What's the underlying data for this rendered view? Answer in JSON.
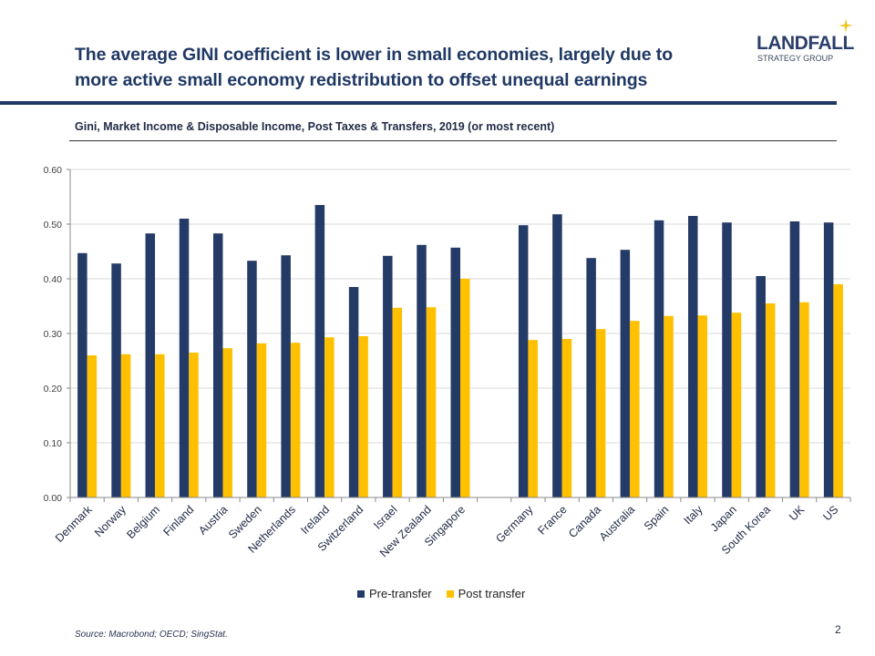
{
  "header": {
    "title_line1": "The average GINI coefficient is lower in small economies, largely due to",
    "title_line2": "more active small economy redistribution to offset unequal earnings",
    "logo_main": "LANDFALL",
    "logo_sub": "STRATEGY GROUP",
    "logo_icon": "four-point-star-icon"
  },
  "colors": {
    "navy": "#1f3864",
    "pre_transfer": "#243b67",
    "post_transfer": "#ffc000",
    "star": "#f0c419"
  },
  "chart_data": {
    "type": "bar",
    "title": "Gini, Market Income & Disposable Income, Post Taxes & Transfers, 2019 (or most recent)",
    "xlabel": "",
    "ylabel": "",
    "ylim": [
      0,
      0.6
    ],
    "yticks": [
      "0.00",
      "0.10",
      "0.20",
      "0.30",
      "0.40",
      "0.50",
      "0.60"
    ],
    "ytick_values": [
      0,
      0.1,
      0.2,
      0.3,
      0.4,
      0.5,
      0.6
    ],
    "grid": true,
    "legend_position": "bottom",
    "categories": [
      "Denmark",
      "Norway",
      "Belgium",
      "Finland",
      "Austria",
      "Sweden",
      "Netherlands",
      "Ireland",
      "Switzerland",
      "Israel",
      "New Zealand",
      "Singapore",
      "",
      "Germany",
      "France",
      "Canada",
      "Australia",
      "Spain",
      "Italy",
      "Japan",
      "South Korea",
      "UK",
      "US"
    ],
    "series": [
      {
        "name": "Pre-transfer",
        "color": "#243b67",
        "values": [
          0.447,
          0.428,
          0.483,
          0.51,
          0.483,
          0.433,
          0.443,
          0.535,
          0.385,
          0.442,
          0.462,
          0.457,
          null,
          0.498,
          0.518,
          0.438,
          0.453,
          0.507,
          0.515,
          0.503,
          0.405,
          0.505,
          0.503
        ]
      },
      {
        "name": "Post transfer",
        "color": "#ffc000",
        "values": [
          0.26,
          0.262,
          0.262,
          0.265,
          0.273,
          0.282,
          0.283,
          0.293,
          0.295,
          0.347,
          0.348,
          0.4,
          null,
          0.288,
          0.29,
          0.308,
          0.323,
          0.332,
          0.333,
          0.338,
          0.355,
          0.357,
          0.39
        ]
      }
    ]
  },
  "legend": {
    "items": [
      {
        "label": "Pre-transfer",
        "color": "#243b67"
      },
      {
        "label": "Post transfer",
        "color": "#ffc000"
      }
    ]
  },
  "footer": {
    "source": "Source: Macrobond;  OECD; SingStat.",
    "page_number": "2"
  }
}
